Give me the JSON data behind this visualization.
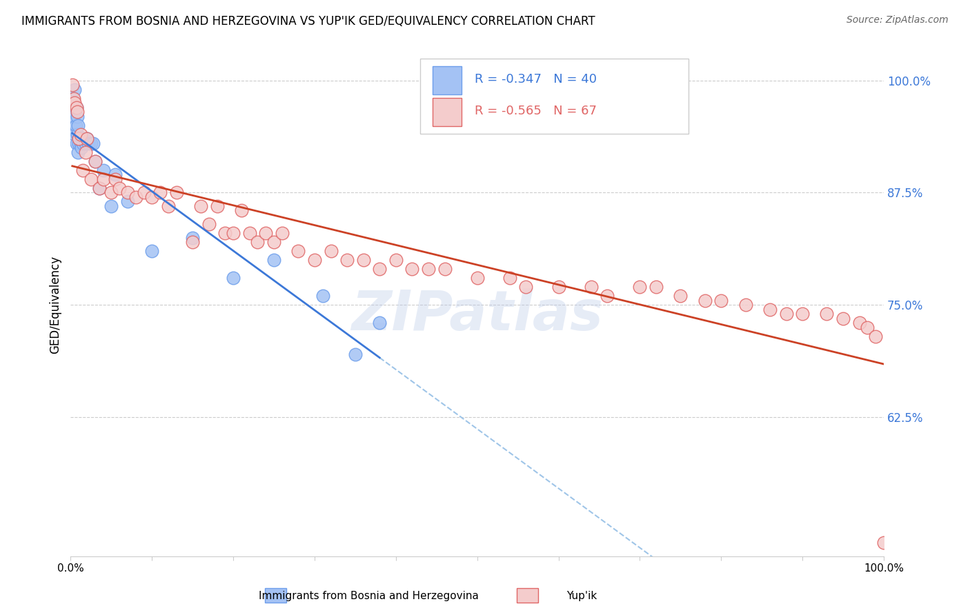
{
  "title": "IMMIGRANTS FROM BOSNIA AND HERZEGOVINA VS YUP'IK GED/EQUIVALENCY CORRELATION CHART",
  "source": "Source: ZipAtlas.com",
  "ylabel": "GED/Equivalency",
  "ytick_labels": [
    "100.0%",
    "87.5%",
    "75.0%",
    "62.5%"
  ],
  "ytick_values": [
    1.0,
    0.875,
    0.75,
    0.625
  ],
  "xlim": [
    0.0,
    1.0
  ],
  "ylim": [
    0.47,
    1.03
  ],
  "series1_label": "Immigrants from Bosnia and Herzegovina",
  "series2_label": "Yup'ik",
  "R1": -0.347,
  "N1": 40,
  "R2": -0.565,
  "N2": 67,
  "series1_color": "#a4c2f4",
  "series2_color": "#f4cccc",
  "series1_edge": "#6d9eeb",
  "series2_edge": "#e06666",
  "trend1_color": "#3c78d8",
  "trend2_color": "#cc4125",
  "dashed_color": "#9fc5e8",
  "watermark": "ZIPatlas",
  "blue_points_x": [
    0.002,
    0.003,
    0.004,
    0.005,
    0.005,
    0.006,
    0.007,
    0.007,
    0.008,
    0.008,
    0.009,
    0.009,
    0.01,
    0.01,
    0.011,
    0.012,
    0.013,
    0.014,
    0.015,
    0.016,
    0.017,
    0.018,
    0.019,
    0.02,
    0.022,
    0.025,
    0.028,
    0.03,
    0.035,
    0.04,
    0.05,
    0.055,
    0.07,
    0.1,
    0.15,
    0.2,
    0.25,
    0.31,
    0.35,
    0.38
  ],
  "blue_points_y": [
    0.97,
    0.98,
    0.96,
    0.94,
    0.99,
    0.95,
    0.93,
    0.97,
    0.94,
    0.96,
    0.92,
    0.95,
    0.935,
    0.93,
    0.935,
    0.93,
    0.925,
    0.935,
    0.93,
    0.935,
    0.935,
    0.93,
    0.935,
    0.935,
    0.93,
    0.93,
    0.93,
    0.91,
    0.88,
    0.9,
    0.86,
    0.895,
    0.865,
    0.81,
    0.825,
    0.78,
    0.8,
    0.76,
    0.695,
    0.73
  ],
  "pink_points_x": [
    0.002,
    0.004,
    0.005,
    0.007,
    0.008,
    0.01,
    0.012,
    0.015,
    0.018,
    0.02,
    0.025,
    0.03,
    0.035,
    0.04,
    0.05,
    0.055,
    0.06,
    0.07,
    0.08,
    0.09,
    0.1,
    0.11,
    0.12,
    0.13,
    0.15,
    0.16,
    0.17,
    0.18,
    0.19,
    0.2,
    0.21,
    0.22,
    0.23,
    0.24,
    0.25,
    0.26,
    0.28,
    0.3,
    0.32,
    0.34,
    0.36,
    0.38,
    0.4,
    0.42,
    0.44,
    0.46,
    0.5,
    0.54,
    0.56,
    0.6,
    0.64,
    0.66,
    0.7,
    0.72,
    0.75,
    0.78,
    0.8,
    0.83,
    0.86,
    0.88,
    0.9,
    0.93,
    0.95,
    0.97,
    0.98,
    0.99,
    1.0
  ],
  "pink_points_y": [
    0.995,
    0.98,
    0.975,
    0.97,
    0.965,
    0.935,
    0.94,
    0.9,
    0.92,
    0.935,
    0.89,
    0.91,
    0.88,
    0.89,
    0.875,
    0.89,
    0.88,
    0.875,
    0.87,
    0.875,
    0.87,
    0.875,
    0.86,
    0.875,
    0.82,
    0.86,
    0.84,
    0.86,
    0.83,
    0.83,
    0.855,
    0.83,
    0.82,
    0.83,
    0.82,
    0.83,
    0.81,
    0.8,
    0.81,
    0.8,
    0.8,
    0.79,
    0.8,
    0.79,
    0.79,
    0.79,
    0.78,
    0.78,
    0.77,
    0.77,
    0.77,
    0.76,
    0.77,
    0.77,
    0.76,
    0.755,
    0.755,
    0.75,
    0.745,
    0.74,
    0.74,
    0.74,
    0.735,
    0.73,
    0.725,
    0.715,
    0.485
  ]
}
